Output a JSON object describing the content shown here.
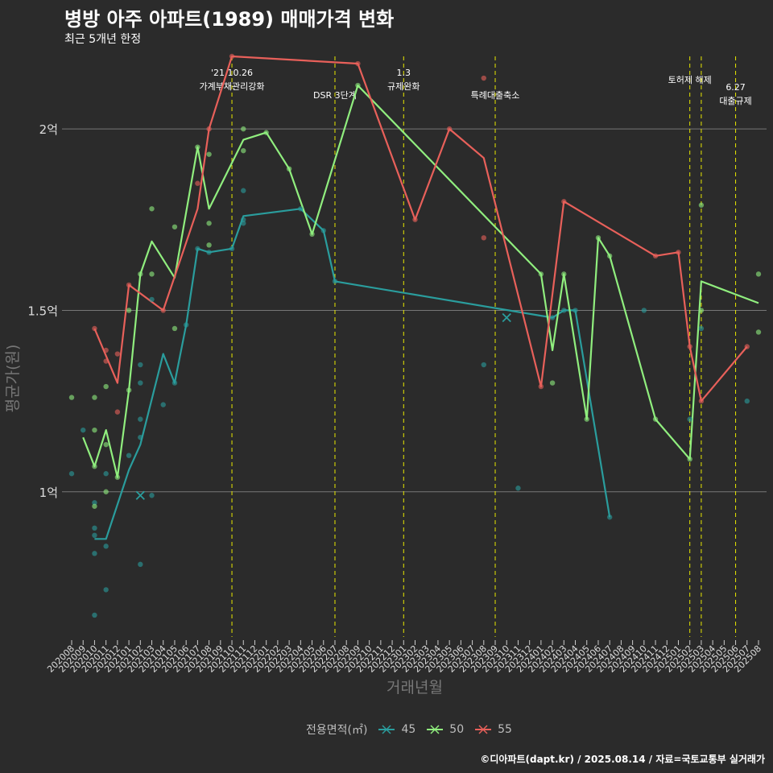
{
  "title": "병방 아주 아파트(1989) 매매가격 변화",
  "subtitle": "최근 5개년 한정",
  "caption": "©디아파트(dapt.kr) / 2025.08.14 / 자료=국토교통부 실거래가",
  "legend_title": "전용면적(㎡)",
  "colors": {
    "45": "#2a9d9d",
    "50": "#90ee7e",
    "55": "#e8605a",
    "grid": "#777777",
    "event": "#e8e800",
    "background": "#2b2b2b"
  },
  "chart_data": {
    "type": "line",
    "xlabel": "거래년월",
    "ylabel": "평균가(원)",
    "ylim": [
      0.6,
      2.2
    ],
    "y_ticks": [
      {
        "value": 1.0,
        "label": "1억"
      },
      {
        "value": 1.5,
        "label": "1.5억"
      },
      {
        "value": 2.0,
        "label": "2억"
      }
    ],
    "categories": [
      "202008",
      "202009",
      "202010",
      "202011",
      "202012",
      "202101",
      "202102",
      "202103",
      "202104",
      "202105",
      "202106",
      "202107",
      "202108",
      "202109",
      "202110",
      "202111",
      "202112",
      "202201",
      "202202",
      "202203",
      "202204",
      "202205",
      "202206",
      "202207",
      "202208",
      "202209",
      "202210",
      "202211",
      "202212",
      "202301",
      "202302",
      "202303",
      "202304",
      "202305",
      "202306",
      "202307",
      "202308",
      "202309",
      "202310",
      "202311",
      "202312",
      "202401",
      "202402",
      "202403",
      "202404",
      "202405",
      "202406",
      "202407",
      "202408",
      "202409",
      "202410",
      "202411",
      "202412",
      "202501",
      "202502",
      "202503",
      "202504",
      "202505",
      "202506",
      "202507",
      "202508"
    ],
    "events": [
      {
        "x": "202110",
        "label": "'21.10.26\n가계부채관리강화"
      },
      {
        "x": "202207",
        "label": "DSR 3단계"
      },
      {
        "x": "202301",
        "label": "1.3\n규제완화"
      },
      {
        "x": "202309",
        "label": "특례대출축소"
      },
      {
        "x": "202502",
        "label": "토허제 해제"
      },
      {
        "x": "202503",
        "label": ""
      },
      {
        "x": "202506",
        "label": "6.27\n대출규제"
      }
    ],
    "series": [
      {
        "name": "45",
        "line": [
          [
            "202010",
            0.87
          ],
          [
            "202011",
            0.87
          ],
          [
            "202101",
            1.06
          ],
          [
            "202102",
            1.13
          ],
          [
            "202104",
            1.38
          ],
          [
            "202105",
            1.3
          ],
          [
            "202106",
            1.46
          ],
          [
            "202107",
            1.67
          ],
          [
            "202108",
            1.66
          ],
          [
            "202110",
            1.67
          ],
          [
            "202111",
            1.76
          ],
          [
            "202204",
            1.78
          ],
          [
            "202206",
            1.72
          ],
          [
            "202207",
            1.58
          ],
          [
            "202402",
            1.48
          ],
          [
            "202403",
            1.5
          ],
          [
            "202404",
            1.5
          ],
          [
            "202407",
            0.93
          ]
        ],
        "points": [
          [
            "202008",
            1.05
          ],
          [
            "202009",
            1.17
          ],
          [
            "202010",
            0.97
          ],
          [
            "202010",
            0.9
          ],
          [
            "202010",
            0.88
          ],
          [
            "202010",
            0.83
          ],
          [
            "202010",
            0.66
          ],
          [
            "202011",
            1.05
          ],
          [
            "202011",
            0.85
          ],
          [
            "202011",
            0.73
          ],
          [
            "202101",
            1.1
          ],
          [
            "202102",
            1.35
          ],
          [
            "202102",
            1.3
          ],
          [
            "202102",
            1.2
          ],
          [
            "202102",
            1.15
          ],
          [
            "202102",
            0.8
          ],
          [
            "202103",
            1.53
          ],
          [
            "202103",
            0.99
          ],
          [
            "202104",
            1.24
          ],
          [
            "202105",
            1.3
          ],
          [
            "202106",
            1.46
          ],
          [
            "202107",
            1.67
          ],
          [
            "202108",
            1.66
          ],
          [
            "202110",
            1.67
          ],
          [
            "202111",
            1.83
          ],
          [
            "202111",
            1.75
          ],
          [
            "202111",
            1.74
          ],
          [
            "202204",
            1.78
          ],
          [
            "202206",
            1.72
          ],
          [
            "202207",
            1.58
          ],
          [
            "202308",
            1.35
          ],
          [
            "202311",
            1.01
          ],
          [
            "202402",
            1.48
          ],
          [
            "202403",
            1.5
          ],
          [
            "202404",
            1.5
          ],
          [
            "202407",
            0.93
          ],
          [
            "202410",
            1.5
          ],
          [
            "202502",
            1.2
          ],
          [
            "202503",
            1.45
          ],
          [
            "202507",
            1.25
          ]
        ],
        "crosses": [
          [
            "202102",
            0.99
          ],
          [
            "202310",
            1.48
          ]
        ]
      },
      {
        "name": "50",
        "line": [
          [
            "202009",
            1.15
          ],
          [
            "202010",
            1.07
          ],
          [
            "202011",
            1.17
          ],
          [
            "202012",
            1.04
          ],
          [
            "202101",
            1.28
          ],
          [
            "202102",
            1.6
          ],
          [
            "202103",
            1.69
          ],
          [
            "202105",
            1.59
          ],
          [
            "202107",
            1.95
          ],
          [
            "202108",
            1.78
          ],
          [
            "202111",
            1.97
          ],
          [
            "202201",
            1.99
          ],
          [
            "202203",
            1.89
          ],
          [
            "202205",
            1.71
          ],
          [
            "202209",
            2.12
          ],
          [
            "202401",
            1.6
          ],
          [
            "202402",
            1.39
          ],
          [
            "202403",
            1.6
          ],
          [
            "202405",
            1.2
          ],
          [
            "202406",
            1.7
          ],
          [
            "202407",
            1.65
          ],
          [
            "202411",
            1.2
          ],
          [
            "202502",
            1.09
          ],
          [
            "202503",
            1.58
          ],
          [
            "202508",
            1.52
          ]
        ],
        "points": [
          [
            "202008",
            1.26
          ],
          [
            "202010",
            1.26
          ],
          [
            "202010",
            1.17
          ],
          [
            "202010",
            1.07
          ],
          [
            "202010",
            0.96
          ],
          [
            "202011",
            1.29
          ],
          [
            "202011",
            1.13
          ],
          [
            "202011",
            1.0
          ],
          [
            "202012",
            1.04
          ],
          [
            "202101",
            1.5
          ],
          [
            "202101",
            1.28
          ],
          [
            "202102",
            1.6
          ],
          [
            "202103",
            1.78
          ],
          [
            "202103",
            1.6
          ],
          [
            "202105",
            1.73
          ],
          [
            "202105",
            1.45
          ],
          [
            "202107",
            1.95
          ],
          [
            "202108",
            1.93
          ],
          [
            "202108",
            1.74
          ],
          [
            "202108",
            1.68
          ],
          [
            "202111",
            2.0
          ],
          [
            "202111",
            1.94
          ],
          [
            "202201",
            1.99
          ],
          [
            "202203",
            1.89
          ],
          [
            "202205",
            1.71
          ],
          [
            "202209",
            2.12
          ],
          [
            "202401",
            1.6
          ],
          [
            "202402",
            1.3
          ],
          [
            "202403",
            1.6
          ],
          [
            "202405",
            1.2
          ],
          [
            "202406",
            1.7
          ],
          [
            "202407",
            1.65
          ],
          [
            "202411",
            1.2
          ],
          [
            "202502",
            1.09
          ],
          [
            "202503",
            1.79
          ],
          [
            "202503",
            1.5
          ],
          [
            "202508",
            1.6
          ],
          [
            "202508",
            1.44
          ]
        ]
      },
      {
        "name": "55",
        "line": [
          [
            "202010",
            1.45
          ],
          [
            "202012",
            1.3
          ],
          [
            "202101",
            1.57
          ],
          [
            "202104",
            1.5
          ],
          [
            "202107",
            1.78
          ],
          [
            "202108",
            2.0
          ],
          [
            "202110",
            2.2
          ],
          [
            "202209",
            2.18
          ],
          [
            "202302",
            1.75
          ],
          [
            "202305",
            2.0
          ],
          [
            "202308",
            1.92
          ],
          [
            "202401",
            1.29
          ],
          [
            "202403",
            1.8
          ],
          [
            "202411",
            1.65
          ],
          [
            "202501",
            1.66
          ],
          [
            "202502",
            1.4
          ],
          [
            "202503",
            1.25
          ],
          [
            "202507",
            1.4
          ]
        ],
        "points": [
          [
            "202010",
            1.45
          ],
          [
            "202011",
            1.39
          ],
          [
            "202011",
            1.36
          ],
          [
            "202012",
            1.38
          ],
          [
            "202012",
            1.22
          ],
          [
            "202101",
            1.57
          ],
          [
            "202104",
            1.5
          ],
          [
            "202107",
            1.85
          ],
          [
            "202108",
            2.0
          ],
          [
            "202110",
            2.2
          ],
          [
            "202209",
            2.18
          ],
          [
            "202302",
            1.75
          ],
          [
            "202305",
            2.0
          ],
          [
            "202308",
            2.14
          ],
          [
            "202308",
            1.7
          ],
          [
            "202401",
            1.29
          ],
          [
            "202403",
            1.8
          ],
          [
            "202411",
            1.65
          ],
          [
            "202501",
            1.66
          ],
          [
            "202502",
            1.4
          ],
          [
            "202503",
            1.25
          ],
          [
            "202507",
            1.4
          ]
        ]
      }
    ]
  }
}
